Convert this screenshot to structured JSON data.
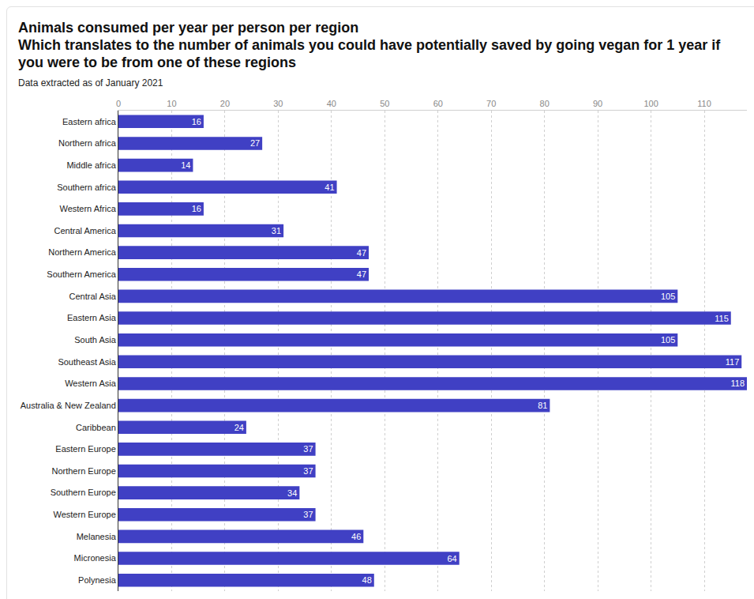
{
  "chart_data": {
    "type": "bar",
    "orientation": "horizontal",
    "title": "Animals consumed per year per person per region",
    "subtitle": "Which translates to the number of animals you could have potentially saved by going vegan for 1 year if you were to be from one of these regions",
    "annotations": [
      "Data extracted as of January 2021"
    ],
    "categories": [
      "Eastern africa",
      "Northern africa",
      "Middle africa",
      "Southern africa",
      "Western Africa",
      "Central America",
      "Northern America",
      "Southern America",
      "Central Asia",
      "Eastern Asia",
      "South Asia",
      "Southeast Asia",
      "Western Asia",
      "Australia & New Zealand",
      "Caribbean",
      "Eastern Europe",
      "Northern Europe",
      "Southern Europe",
      "Western Europe",
      "Melanesia",
      "Micronesia",
      "Polynesia"
    ],
    "values": [
      16,
      27,
      14,
      41,
      16,
      31,
      47,
      47,
      105,
      115,
      105,
      117,
      118,
      81,
      24,
      37,
      37,
      34,
      37,
      46,
      64,
      48
    ],
    "color": "#4040c4",
    "xlim": [
      0,
      118
    ],
    "xticks": [
      0,
      10,
      20,
      30,
      40,
      50,
      60,
      70,
      80,
      90,
      100,
      110
    ],
    "grid": true,
    "data_labels": true
  }
}
